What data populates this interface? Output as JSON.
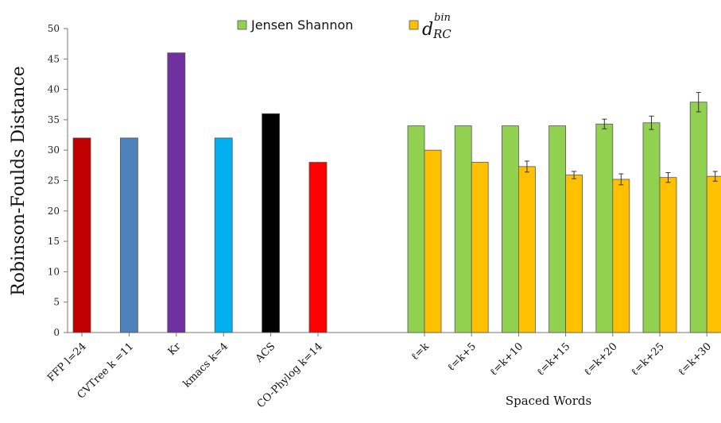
{
  "chart_data": {
    "type": "bar",
    "ylabel": "Robinson-Foulds Distance",
    "ylim": [
      0,
      50
    ],
    "yticks": [
      0,
      5,
      10,
      15,
      20,
      25,
      30,
      35,
      40,
      45,
      50
    ],
    "grid": false,
    "legend": {
      "placement": "top",
      "entries": [
        {
          "label": "Jensen Shannon",
          "color": "#92d050"
        },
        {
          "label": "d",
          "sup": "bin",
          "sub": "RC",
          "color": "#ffc000"
        }
      ]
    },
    "single_bars": [
      {
        "category": "FFP l=24",
        "value": 32,
        "color": "#c00000"
      },
      {
        "category": "CVTree k =11",
        "value": 32,
        "color": "#4f81bd"
      },
      {
        "category": "Kr",
        "value": 46,
        "color": "#7030a0"
      },
      {
        "category": "kmacs k=4",
        "value": 32,
        "color": "#00b0f0"
      },
      {
        "category": "ACS",
        "value": 36,
        "color": "#000000"
      },
      {
        "category": "CO-Phylog k=14",
        "value": 28,
        "color": "#ff0000"
      }
    ],
    "group_label": "Spaced Words",
    "categories": [
      "ℓ=k",
      "ℓ=k+5",
      "ℓ=k+10",
      "ℓ=k+15",
      "ℓ=k+20",
      "ℓ=k+25",
      "ℓ=k+30"
    ],
    "series": [
      {
        "name": "Jensen Shannon",
        "color": "#92d050",
        "values": [
          34,
          34,
          34,
          34,
          34.3,
          34.5,
          37.9
        ],
        "errors": [
          0,
          0,
          0,
          0,
          0.8,
          1.1,
          1.6
        ]
      },
      {
        "name": "d bin RC",
        "color": "#ffc000",
        "values": [
          30,
          28,
          27.3,
          25.9,
          25.2,
          25.5,
          25.7
        ],
        "errors": [
          0,
          0,
          0.9,
          0.6,
          0.9,
          0.8,
          0.8
        ]
      }
    ]
  }
}
